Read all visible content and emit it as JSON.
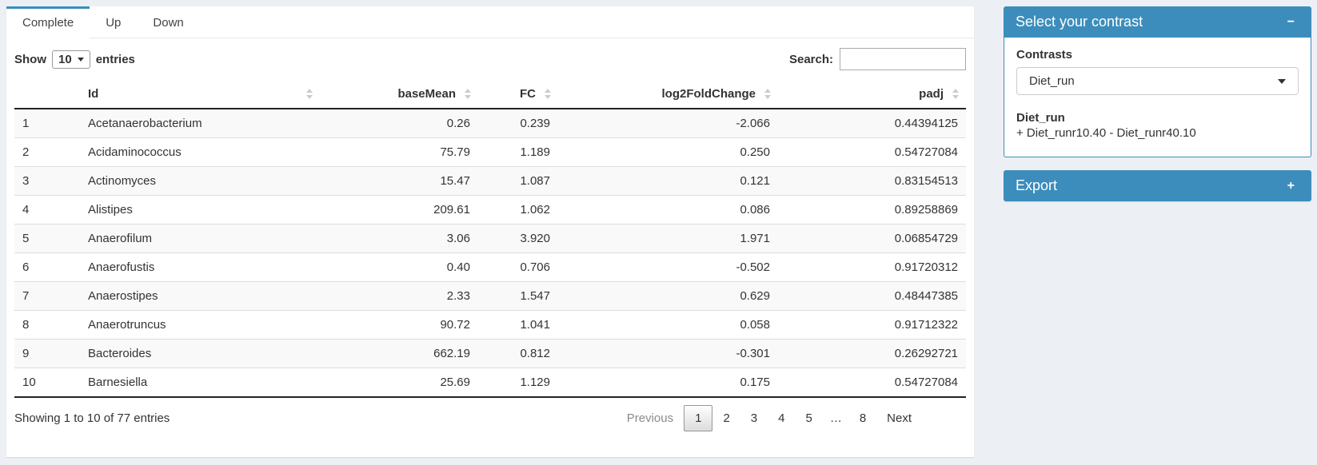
{
  "tabs": [
    {
      "label": "Complete",
      "active": true
    },
    {
      "label": "Up",
      "active": false
    },
    {
      "label": "Down",
      "active": false
    }
  ],
  "length_control": {
    "prefix": "Show",
    "selected": "10",
    "suffix": "entries"
  },
  "search": {
    "label": "Search:",
    "value": ""
  },
  "table": {
    "columns": [
      "Id",
      "baseMean",
      "FC",
      "log2FoldChange",
      "padj"
    ],
    "rows": [
      {
        "n": "1",
        "id": "Acetanaerobacterium",
        "baseMean": "0.26",
        "fc": "0.239",
        "log2fc": "-2.066",
        "padj": "0.44394125"
      },
      {
        "n": "2",
        "id": "Acidaminococcus",
        "baseMean": "75.79",
        "fc": "1.189",
        "log2fc": "0.250",
        "padj": "0.54727084"
      },
      {
        "n": "3",
        "id": "Actinomyces",
        "baseMean": "15.47",
        "fc": "1.087",
        "log2fc": "0.121",
        "padj": "0.83154513"
      },
      {
        "n": "4",
        "id": "Alistipes",
        "baseMean": "209.61",
        "fc": "1.062",
        "log2fc": "0.086",
        "padj": "0.89258869"
      },
      {
        "n": "5",
        "id": "Anaerofilum",
        "baseMean": "3.06",
        "fc": "3.920",
        "log2fc": "1.971",
        "padj": "0.06854729"
      },
      {
        "n": "6",
        "id": "Anaerofustis",
        "baseMean": "0.40",
        "fc": "0.706",
        "log2fc": "-0.502",
        "padj": "0.91720312"
      },
      {
        "n": "7",
        "id": "Anaerostipes",
        "baseMean": "2.33",
        "fc": "1.547",
        "log2fc": "0.629",
        "padj": "0.48447385"
      },
      {
        "n": "8",
        "id": "Anaerotruncus",
        "baseMean": "90.72",
        "fc": "1.041",
        "log2fc": "0.058",
        "padj": "0.91712322"
      },
      {
        "n": "9",
        "id": "Bacteroides",
        "baseMean": "662.19",
        "fc": "0.812",
        "log2fc": "-0.301",
        "padj": "0.26292721"
      },
      {
        "n": "10",
        "id": "Barnesiella",
        "baseMean": "25.69",
        "fc": "1.129",
        "log2fc": "0.175",
        "padj": "0.54727084"
      }
    ]
  },
  "footer": {
    "info": "Showing 1 to 10 of 77 entries",
    "pagination": [
      {
        "label": "Previous",
        "kind": "disabled"
      },
      {
        "label": "1",
        "kind": "current"
      },
      {
        "label": "2",
        "kind": "page"
      },
      {
        "label": "3",
        "kind": "page"
      },
      {
        "label": "4",
        "kind": "page"
      },
      {
        "label": "5",
        "kind": "page"
      },
      {
        "label": "…",
        "kind": "ellipsis"
      },
      {
        "label": "8",
        "kind": "page"
      },
      {
        "label": "Next",
        "kind": "page"
      }
    ]
  },
  "contrast_panel": {
    "title": "Select your contrast",
    "collapse_icon": "−",
    "contrasts_label": "Contrasts",
    "selected_contrast": "Diet_run",
    "contrast_name": "Diet_run",
    "contrast_formula": "+ Diet_runr10.40 - Diet_runr40.10"
  },
  "export_panel": {
    "title": "Export",
    "expand_icon": "+"
  },
  "colors": {
    "primary": "#3c8dbc",
    "page_bg": "#ecf0f5"
  }
}
